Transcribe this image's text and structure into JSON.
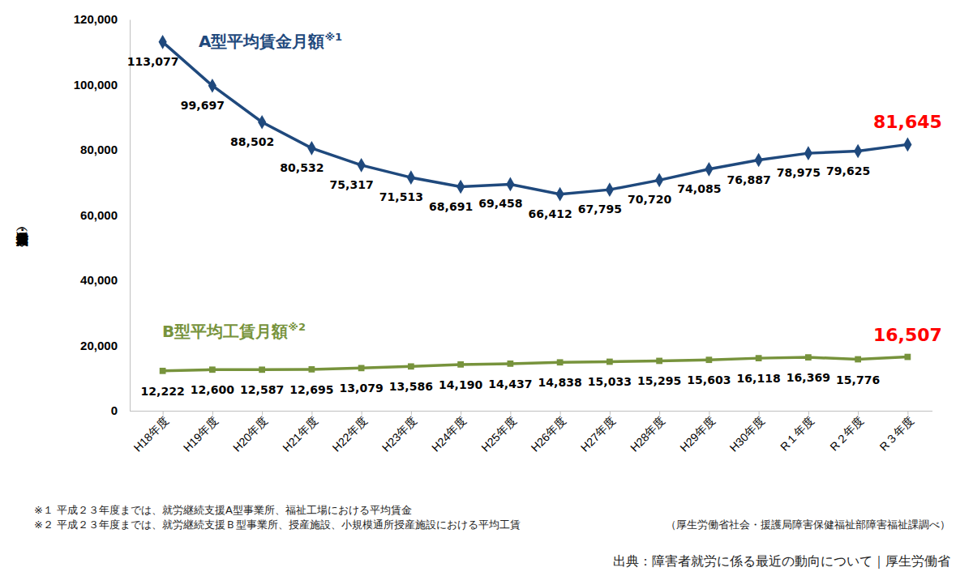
{
  "chart_data": {
    "type": "line",
    "categories": [
      "H18年度",
      "H19年度",
      "H20年度",
      "H21年度",
      "H22年度",
      "H23年度",
      "H24年度",
      "H25年度",
      "H26年度",
      "H27年度",
      "H28年度",
      "H29年度",
      "H30年度",
      "R１年度",
      "R２年度",
      "R３年度"
    ],
    "series": [
      {
        "name": "A型平均賃金月額※1",
        "color": "#1f497d",
        "marker": "diamond",
        "values": [
          113077,
          99697,
          88502,
          80532,
          75317,
          71513,
          68691,
          69458,
          66412,
          67795,
          70720,
          74085,
          76887,
          78975,
          79625,
          81645
        ],
        "value_labels": [
          "113,077",
          "99,697",
          "88,502",
          "80,532",
          "75,317",
          "71,513",
          "68,691",
          "69,458",
          "66,412",
          "67,795",
          "70,720",
          "74,085",
          "76,887",
          "78,975",
          "79,625",
          "81,645"
        ]
      },
      {
        "name": "B型平均工賃月額※2",
        "color": "#77933c",
        "marker": "square",
        "values": [
          12222,
          12600,
          12587,
          12695,
          13079,
          13586,
          14190,
          14437,
          14838,
          15033,
          15295,
          15603,
          16118,
          16369,
          15776,
          16507
        ],
        "value_labels": [
          "12,222",
          "12,600",
          "12,587",
          "12,695",
          "13,079",
          "13,586",
          "14,190",
          "14,437",
          "14,838",
          "15,033",
          "15,295",
          "15,603",
          "16,118",
          "16,369",
          "15,776",
          "16,507"
        ]
      }
    ],
    "ylim": [
      0,
      120000
    ],
    "yticks": [
      0,
      {
        "value": 20000,
        "label": "20,000"
      },
      {
        "value": 40000,
        "label": "40,000"
      },
      {
        "value": 60000,
        "label": "60,000"
      },
      {
        "value": 80000,
        "label": "80,000"
      },
      {
        "value": 100000,
        "label": "100,000"
      },
      {
        "value": 120000,
        "label": "120,000"
      }
    ],
    "ylabel": "平均賃金・工賃月額（円）",
    "data_labels": true,
    "grid": false,
    "annotations": [
      "※１ 平成２３年度までは、就労継続支援A型事業所、福祉工場における平均賃金",
      "※２ 平成２３年度までは、就労継続支援Ｂ型事業所、授産施設、小規模通所授産施設における平均工賃",
      "（厚生労働省社会・援護局障害保健福祉部障害福祉課調べ）",
      "出典：障害者就労に係る最近の動向について｜厚生労働省"
    ]
  }
}
